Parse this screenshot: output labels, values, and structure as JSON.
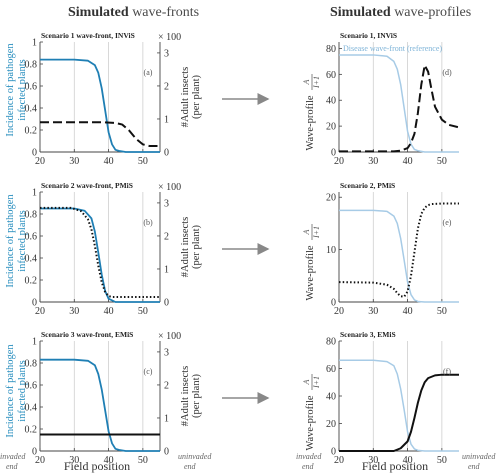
{
  "figure": {
    "left_title_bold": "Simulated",
    "left_title_rest": " wave-fronts",
    "right_title_bold": "Simulated",
    "right_title_rest": " wave-profiles",
    "xlabel": "Field position",
    "invaded_label": "invaded",
    "uninvaded_label": "uninvaded",
    "end_label": "end",
    "left_ylabel_line1": "Incidence of pathogen",
    "left_ylabel_line2": "infected plants",
    "right_ylabel_line1": "#Adult insects",
    "right_ylabel_line2": "(per plant)",
    "multiplier": "× 100",
    "profile_ylabel": "Wave-profile",
    "ratio_num": "A",
    "ratio_den": "I+1",
    "reference_label": "Disease wave-front (reference)",
    "colors": {
      "disease": "#1f7fb4",
      "reference": "#a7cbe6",
      "insects": "#111111",
      "arrow": "#888888"
    }
  },
  "chart_data": [
    {
      "id": "front1",
      "type": "line",
      "title": "Scenario 1 wave-front, INViS",
      "panel_label": "(a)",
      "xlim": [
        20,
        55
      ],
      "ylim": [
        0,
        1
      ],
      "y2lim": [
        0,
        3.33
      ],
      "xticks": [
        20,
        30,
        40,
        50
      ],
      "yticks": [
        0,
        0.2,
        0.4,
        0.6,
        0.8,
        1
      ],
      "y2ticks": [
        0,
        1,
        2,
        3
      ],
      "vlines": [
        30,
        40,
        50
      ],
      "series": [
        {
          "role": "disease",
          "axis": "left",
          "style": "solid",
          "x": [
            20,
            30,
            34,
            36,
            37,
            38,
            39,
            40,
            41,
            42,
            43,
            45,
            55
          ],
          "y": [
            0.84,
            0.84,
            0.83,
            0.79,
            0.72,
            0.58,
            0.38,
            0.18,
            0.07,
            0.02,
            0.01,
            0,
            0
          ]
        },
        {
          "role": "insects",
          "axis": "right",
          "style": "dash",
          "x": [
            20,
            38,
            42,
            44,
            46,
            48,
            50,
            52,
            55
          ],
          "y": [
            0.9,
            0.9,
            0.88,
            0.83,
            0.65,
            0.4,
            0.23,
            0.18,
            0.18
          ]
        }
      ]
    },
    {
      "id": "front2",
      "type": "line",
      "title": "Scenario 2 wave-front, PMiS",
      "panel_label": "(b)",
      "xlim": [
        20,
        55
      ],
      "ylim": [
        0,
        1
      ],
      "y2lim": [
        0,
        3.33
      ],
      "xticks": [
        20,
        30,
        40,
        50
      ],
      "yticks": [
        0,
        0.2,
        0.4,
        0.6,
        0.8,
        1
      ],
      "y2ticks": [
        0,
        1,
        2,
        3
      ],
      "vlines": [
        30,
        40,
        50
      ],
      "series": [
        {
          "role": "disease",
          "axis": "left",
          "style": "solid",
          "x": [
            20,
            30,
            33,
            35,
            36,
            37,
            38,
            39,
            40,
            42,
            55
          ],
          "y": [
            0.85,
            0.85,
            0.83,
            0.76,
            0.64,
            0.45,
            0.25,
            0.1,
            0.03,
            0,
            0
          ]
        },
        {
          "role": "insects",
          "axis": "right",
          "style": "dot",
          "x": [
            20,
            29,
            32,
            34,
            35,
            36,
            37,
            38,
            39,
            40,
            41,
            55
          ],
          "y": [
            2.85,
            2.85,
            2.75,
            2.5,
            2.2,
            1.7,
            1.1,
            0.6,
            0.3,
            0.18,
            0.15,
            0.15
          ]
        }
      ]
    },
    {
      "id": "front3",
      "type": "line",
      "title": "Scenario 3 wave-front, EMiS",
      "panel_label": "(c)",
      "xlim": [
        20,
        55
      ],
      "ylim": [
        0,
        1
      ],
      "y2lim": [
        0,
        3.33
      ],
      "xticks": [
        20,
        30,
        40,
        50
      ],
      "yticks": [
        0,
        0.2,
        0.4,
        0.6,
        0.8,
        1
      ],
      "y2ticks": [
        0,
        1,
        2,
        3
      ],
      "vlines": [
        30,
        40,
        50
      ],
      "series": [
        {
          "role": "disease",
          "axis": "left",
          "style": "solid",
          "x": [
            20,
            30,
            34,
            36,
            37,
            38,
            39,
            40,
            41,
            42,
            43,
            45,
            55
          ],
          "y": [
            0.83,
            0.83,
            0.82,
            0.78,
            0.7,
            0.56,
            0.37,
            0.18,
            0.07,
            0.02,
            0.01,
            0,
            0
          ]
        },
        {
          "role": "insects",
          "axis": "right",
          "style": "solid",
          "x": [
            20,
            55
          ],
          "y": [
            0.5,
            0.5
          ]
        }
      ]
    },
    {
      "id": "profile1",
      "type": "line",
      "title": "Scenario 1, INViS",
      "panel_label": "(d)",
      "xlim": [
        20,
        55
      ],
      "ylim": [
        0,
        85
      ],
      "xticks": [
        20,
        30,
        40,
        50
      ],
      "yticks": [
        0,
        20,
        40,
        60,
        80
      ],
      "vlines": [
        30,
        40,
        50
      ],
      "show_reference_label": true,
      "series": [
        {
          "role": "reference",
          "style": "solid",
          "x": [
            20,
            30,
            34,
            36,
            37,
            38,
            39,
            40,
            41,
            42,
            43,
            45,
            55
          ],
          "y": [
            75,
            75,
            74,
            70,
            64,
            52,
            34,
            16,
            6,
            2,
            1,
            0,
            0
          ]
        },
        {
          "role": "profile",
          "style": "dash",
          "x": [
            20,
            36,
            38,
            40,
            41,
            42,
            43,
            44,
            45,
            46,
            47,
            48,
            50,
            52,
            55
          ],
          "y": [
            0.5,
            0.5,
            1,
            3,
            7,
            14,
            30,
            52,
            67,
            62,
            48,
            35,
            25,
            21,
            19
          ]
        }
      ]
    },
    {
      "id": "profile2",
      "type": "line",
      "title": "Scenario 2, PMiS",
      "panel_label": "(e)",
      "xlim": [
        20,
        55
      ],
      "ylim": [
        0,
        21
      ],
      "xticks": [
        20,
        30,
        40,
        50
      ],
      "yticks": [
        0,
        10,
        20
      ],
      "vlines": [
        30,
        40,
        50
      ],
      "show_reference_label": false,
      "series": [
        {
          "role": "reference",
          "style": "solid",
          "x": [
            20,
            30,
            34,
            36,
            37,
            38,
            39,
            40,
            41,
            42,
            43,
            45,
            55
          ],
          "y": [
            17.5,
            17.5,
            17.3,
            16.4,
            15,
            12.1,
            8,
            3.8,
            1.4,
            0.4,
            0.1,
            0,
            0
          ]
        },
        {
          "role": "profile",
          "style": "dot",
          "x": [
            20,
            30,
            34,
            36,
            37,
            38,
            39,
            40,
            41,
            42,
            43,
            44,
            45,
            46,
            47,
            50,
            55
          ],
          "y": [
            3.8,
            3.7,
            3.3,
            2.5,
            1.7,
            1.1,
            1.0,
            2.0,
            5.0,
            9.5,
            14,
            16.8,
            18.0,
            18.5,
            18.7,
            18.8,
            18.8
          ]
        }
      ]
    },
    {
      "id": "profile3",
      "type": "line",
      "title": "Scenario 3, EMiS",
      "panel_label": "(f)",
      "xlim": [
        20,
        55
      ],
      "ylim": [
        0,
        80
      ],
      "xticks": [
        20,
        30,
        40,
        50
      ],
      "yticks": [
        0,
        20,
        40,
        60,
        80
      ],
      "vlines": [
        30,
        40,
        50
      ],
      "show_reference_label": false,
      "series": [
        {
          "role": "reference",
          "style": "solid",
          "x": [
            20,
            30,
            34,
            36,
            37,
            38,
            39,
            40,
            41,
            42,
            43,
            45,
            55
          ],
          "y": [
            66,
            66,
            65,
            62,
            56,
            45,
            30,
            14,
            5,
            1.5,
            0.5,
            0,
            0
          ]
        },
        {
          "role": "profile",
          "style": "solid",
          "x": [
            20,
            36,
            38,
            40,
            41,
            42,
            43,
            44,
            45,
            46,
            48,
            50,
            55
          ],
          "y": [
            0,
            0,
            2,
            7,
            14,
            24,
            35,
            44,
            50,
            53,
            55,
            55.5,
            55.5
          ]
        }
      ]
    }
  ]
}
